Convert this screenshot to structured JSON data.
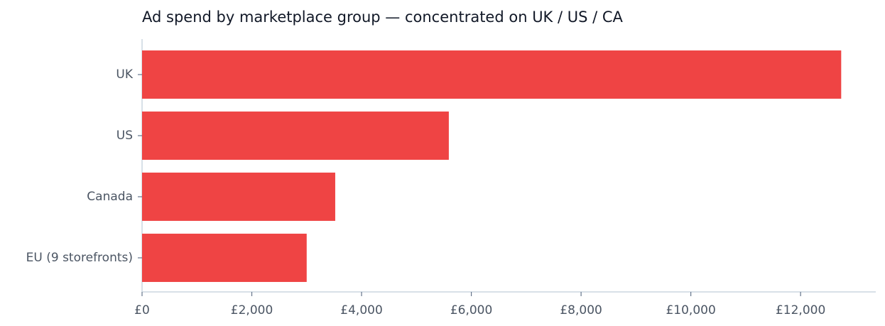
{
  "chart_data": {
    "type": "hbar",
    "title": "Ad spend by marketplace group — concentrated on UK / US / CA",
    "categories": [
      "UK",
      "US",
      "Canada",
      "EU (9 storefronts)"
    ],
    "values": [
      12740,
      5590,
      3520,
      3000
    ],
    "color": "#ef4444",
    "xlim": [
      0,
      13370
    ],
    "xticks": [
      {
        "value": 0,
        "label": "£0"
      },
      {
        "value": 2000,
        "label": "£2,000"
      },
      {
        "value": 4000,
        "label": "£4,000"
      },
      {
        "value": 6000,
        "label": "£6,000"
      },
      {
        "value": 8000,
        "label": "£8,000"
      },
      {
        "value": 10000,
        "label": "£10,000"
      },
      {
        "value": 12000,
        "label": "£12,000"
      }
    ],
    "grid": false
  }
}
